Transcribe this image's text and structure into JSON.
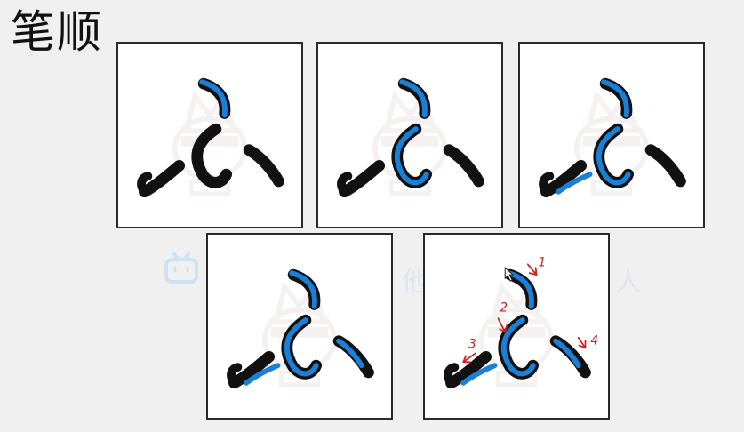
{
  "title": "笔顺",
  "watermark_chars": [
    "他",
    "人"
  ],
  "colors": {
    "ink": "#111111",
    "highlight": "#1a7fd6",
    "annotation": "#d42020",
    "watermark": "#e8d8d8"
  },
  "panels": [
    {
      "strokes_highlighted": [
        1
      ]
    },
    {
      "strokes_highlighted": [
        1,
        2
      ]
    },
    {
      "strokes_highlighted": [
        1,
        2,
        3
      ]
    },
    {
      "strokes_highlighted": [
        1,
        2,
        3,
        4
      ]
    },
    {
      "strokes_highlighted": [
        1,
        2,
        3,
        4
      ],
      "annotations": [
        "1",
        "2",
        "3",
        "4"
      ]
    }
  ]
}
